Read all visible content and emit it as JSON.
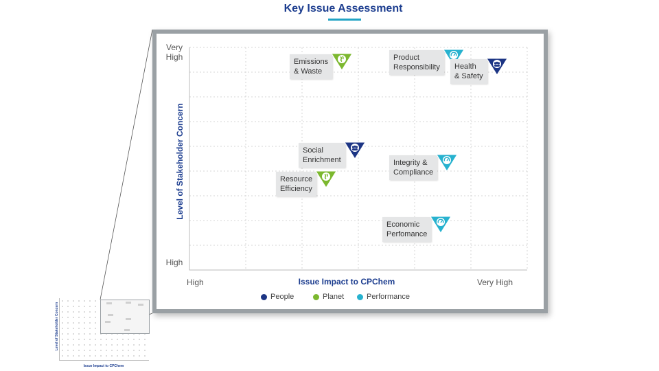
{
  "chart_data": {
    "type": "scatter",
    "title": "Key Issue Assessment",
    "xlabel": "Issue Impact to CPChem",
    "ylabel": "Level of Stakeholder Concern",
    "x_ticks": [
      "High",
      "Very High"
    ],
    "y_ticks": [
      "Very\nHigh",
      "High"
    ],
    "xlim": [
      0,
      1
    ],
    "ylim": [
      0,
      1
    ],
    "grid": true,
    "legend_position": "bottom-center",
    "legend": [
      {
        "name": "People",
        "color": "#1c3584"
      },
      {
        "name": "Planet",
        "color": "#7cb82f"
      },
      {
        "name": "Performance",
        "color": "#27b2cf"
      }
    ],
    "points": [
      {
        "label": "Emissions\n& Waste",
        "category": "Planet",
        "x": 0.28,
        "y": 0.96
      },
      {
        "label": "Product\nResponsibility",
        "category": "Performance",
        "x": 0.72,
        "y": 0.98
      },
      {
        "label": "Health\n& Safety",
        "category": "People",
        "x": 0.99,
        "y": 0.93
      },
      {
        "label": "Social\nEnrichment",
        "category": "People",
        "x": 0.32,
        "y": 0.47
      },
      {
        "label": "Integrity &\nCompliance",
        "category": "Performance",
        "x": 0.72,
        "y": 0.4
      },
      {
        "label": "Resource\nEfficiency",
        "category": "Planet",
        "x": 0.22,
        "y": 0.31
      },
      {
        "label": "Economic\nPerfomance",
        "category": "Performance",
        "x": 0.69,
        "y": 0.06
      }
    ]
  },
  "mini": {
    "ylabel": "Level of Stakeholder Concern",
    "xlabel": "Issue Impact to CPChem"
  }
}
